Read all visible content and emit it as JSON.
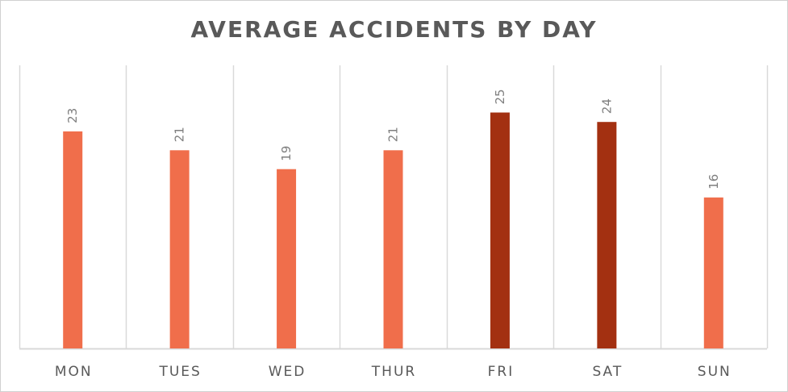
{
  "chart_data": {
    "type": "bar",
    "title": "AVERAGE ACCIDENTS BY DAY",
    "categories": [
      "MON",
      "TUES",
      "WED",
      "THUR",
      "FRI",
      "SAT",
      "SUN"
    ],
    "values": [
      23,
      21,
      19,
      21,
      25,
      24,
      16
    ],
    "data_labels": [
      "23",
      "21",
      "19",
      "21",
      "25",
      "24",
      "16"
    ],
    "ylim": [
      0,
      30
    ],
    "xlabel": "",
    "ylabel": "",
    "grid": "vertical category separators",
    "legend": "none",
    "colors": {
      "default": "#F06E4B",
      "highlight": "#A33011",
      "gridline": "#d9d9d9",
      "text": "#595959"
    },
    "highlighted": [
      "FRI",
      "SAT"
    ]
  }
}
